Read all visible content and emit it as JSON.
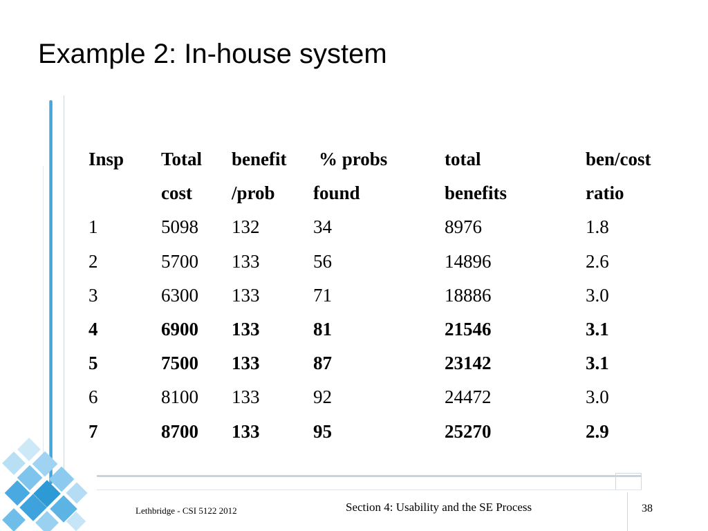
{
  "slide": {
    "title": "Example 2: In-house system"
  },
  "table": {
    "header_line1": [
      "Insp",
      "Total",
      "benefit",
      "% probs",
      "total",
      "ben/cost"
    ],
    "header_line2": [
      "",
      "cost",
      "/prob",
      "found",
      "benefits",
      "ratio"
    ],
    "rows": [
      {
        "cells": [
          "1",
          "5098",
          "132",
          "34",
          "8976",
          "1.8"
        ],
        "bold": false
      },
      {
        "cells": [
          "2",
          "5700",
          "133",
          "56",
          "14896",
          "2.6"
        ],
        "bold": false
      },
      {
        "cells": [
          "3",
          "6300",
          "133",
          "71",
          "18886",
          "3.0"
        ],
        "bold": false
      },
      {
        "cells": [
          "4",
          "6900",
          "133",
          "81",
          "21546",
          "3.1"
        ],
        "bold": true
      },
      {
        "cells": [
          "5",
          "7500",
          "133",
          "87",
          "23142",
          "3.1"
        ],
        "bold": true
      },
      {
        "cells": [
          "6",
          "8100",
          "133",
          "92",
          "24472",
          "3.0"
        ],
        "bold": false
      },
      {
        "cells": [
          "7",
          "8700",
          "133",
          "95",
          "25270",
          "2.9"
        ],
        "bold": true
      }
    ]
  },
  "footer": {
    "left": "Lethbridge - CSI 5122 2012",
    "center": "Section 4: Usability and the SE Process",
    "page_number": "38"
  },
  "colors": {
    "accent_blue": "#2d9ad6",
    "light_blue": "#7fc4ec"
  }
}
